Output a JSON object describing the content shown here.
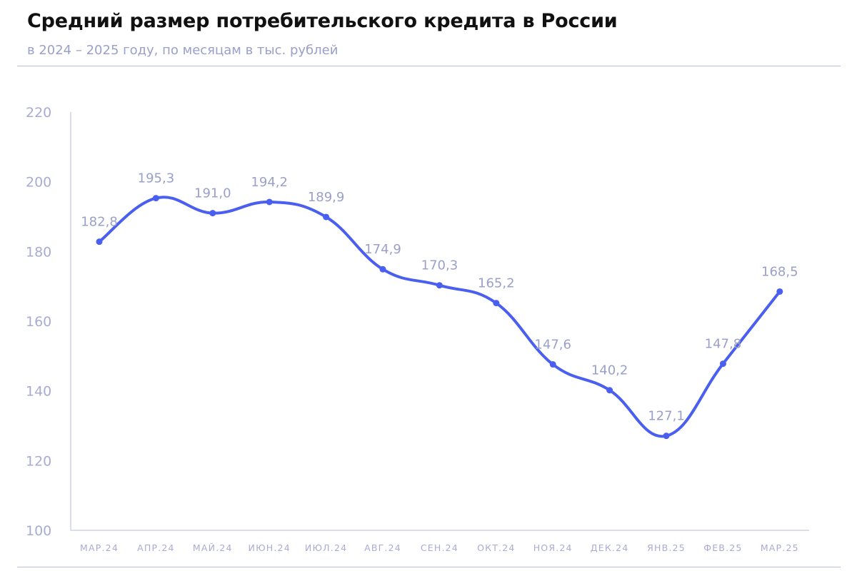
{
  "header": {
    "title": "Средний размер потребительского кредита в России",
    "subtitle": "в 2024 – 2025 году, по месяцам в тыс. рублей"
  },
  "colors": {
    "line": "#4a5ff0",
    "axis": "#b9bddc",
    "tick_text": "#a8acd2",
    "data_label_text": "#9aa0c8"
  },
  "chart_data": {
    "type": "line",
    "title": "Средний размер потребительского кредита в России",
    "subtitle": "в 2024 – 2025 году, по месяцам в тыс. рублей",
    "xlabel": "",
    "ylabel": "",
    "categories": [
      "МАР.24",
      "АПР.24",
      "МАЙ.24",
      "ИЮН.24",
      "ИЮЛ.24",
      "АВГ.24",
      "СЕН.24",
      "ОКТ.24",
      "НОЯ.24",
      "ДЕК.24",
      "ЯНВ.25",
      "ФЕВ.25",
      "МАР.25"
    ],
    "series": [
      {
        "values": [
          182.8,
          195.3,
          191.0,
          194.2,
          189.9,
          174.9,
          170.3,
          165.2,
          147.6,
          140.2,
          127.1,
          147.8,
          168.5
        ],
        "labels": [
          "182,8",
          "195,3",
          "191,0",
          "194,2",
          "189,9",
          "174,9",
          "170,3",
          "165,2",
          "147,6",
          "140,2",
          "127,1",
          "147,8",
          "168,5"
        ]
      }
    ],
    "ylim": [
      100,
      220
    ],
    "yticks": [
      100,
      120,
      140,
      160,
      180,
      200,
      220
    ],
    "grid": false,
    "legend": "none",
    "smooth": true
  }
}
